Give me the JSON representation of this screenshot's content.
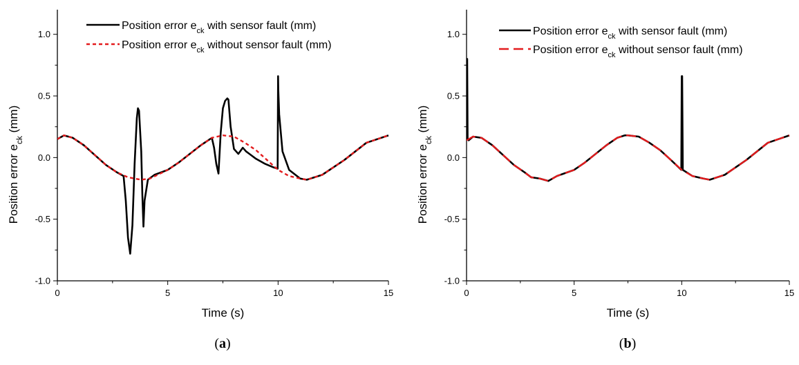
{
  "chart_data": [
    {
      "type": "line",
      "panel_label": "a",
      "xlabel": "Time (s)",
      "ylabel": {
        "main": "Position error e",
        "sub": "ck",
        "unit": " (mm)"
      },
      "xlim": [
        0,
        15
      ],
      "ylim": [
        -1.0,
        1.2
      ],
      "xticks": [
        "0",
        "5",
        "10",
        "15"
      ],
      "xtick_values": [
        0,
        5,
        10,
        15
      ],
      "yticks": [
        "-1.0",
        "-0.5",
        "0.0",
        "0.5",
        "1.0"
      ],
      "ytick_values": [
        -1.0,
        -0.5,
        0.0,
        0.5,
        1.0
      ],
      "legend_position": "top-center",
      "series": [
        {
          "name": {
            "main": "Position error e",
            "sub": "ck",
            "suffix": " with sensor fault (mm)"
          },
          "color": "#000000",
          "style": "solid",
          "x": [
            0,
            0.3,
            0.7,
            1.2,
            1.7,
            2.2,
            2.7,
            3.0,
            3.1,
            3.2,
            3.3,
            3.4,
            3.5,
            3.6,
            3.65,
            3.7,
            3.8,
            3.85,
            3.9,
            3.95,
            4.1,
            4.4,
            5.0,
            5.5,
            6.0,
            6.5,
            7.0,
            7.1,
            7.2,
            7.3,
            7.4,
            7.5,
            7.6,
            7.7,
            7.75,
            7.85,
            8.0,
            8.2,
            8.4,
            8.55,
            8.7,
            9.0,
            9.4,
            9.8,
            9.98,
            10.0,
            10.01,
            10.05,
            10.2,
            10.5,
            11.0,
            11.3,
            12.0,
            13.0,
            14.0,
            15.0
          ],
          "y": [
            0.15,
            0.18,
            0.16,
            0.1,
            0.02,
            -0.06,
            -0.12,
            -0.15,
            -0.35,
            -0.65,
            -0.78,
            -0.55,
            -0.05,
            0.32,
            0.4,
            0.38,
            0.05,
            -0.3,
            -0.56,
            -0.35,
            -0.18,
            -0.14,
            -0.1,
            -0.04,
            0.03,
            0.1,
            0.16,
            0.08,
            -0.05,
            -0.13,
            0.2,
            0.4,
            0.46,
            0.48,
            0.47,
            0.25,
            0.07,
            0.03,
            0.08,
            0.05,
            0.03,
            -0.01,
            -0.05,
            -0.08,
            -0.09,
            0.66,
            0.55,
            0.35,
            0.05,
            -0.1,
            -0.17,
            -0.18,
            -0.14,
            -0.02,
            0.12,
            0.18
          ]
        },
        {
          "name": {
            "main": "Position error e",
            "sub": "ck",
            "suffix": " without sensor fault (mm)"
          },
          "color": "#e31a1c",
          "style": "dotted",
          "x": [
            0,
            0.3,
            0.7,
            1.2,
            1.7,
            2.2,
            2.7,
            3.2,
            3.8,
            4.2,
            5.0,
            5.5,
            6.0,
            6.5,
            7.0,
            7.5,
            8.0,
            8.5,
            9.0,
            9.5,
            10.0,
            10.5,
            11.0,
            11.3,
            12.0,
            13.0,
            14.0,
            15.0
          ],
          "y": [
            0.15,
            0.18,
            0.16,
            0.1,
            0.02,
            -0.06,
            -0.12,
            -0.16,
            -0.18,
            -0.17,
            -0.1,
            -0.04,
            0.03,
            0.1,
            0.16,
            0.18,
            0.17,
            0.12,
            0.06,
            -0.02,
            -0.1,
            -0.15,
            -0.17,
            -0.18,
            -0.14,
            -0.02,
            0.12,
            0.18
          ]
        }
      ]
    },
    {
      "type": "line",
      "panel_label": "b",
      "xlabel": "Time (s)",
      "ylabel": {
        "main": "Position error e",
        "sub": "ck",
        "unit": " (mm)"
      },
      "xlim": [
        0,
        15
      ],
      "ylim": [
        -1.0,
        1.2
      ],
      "xticks": [
        "0",
        "5",
        "10",
        "15"
      ],
      "xtick_values": [
        0,
        5,
        10,
        15
      ],
      "yticks": [
        "-1.0",
        "-0.5",
        "0.0",
        "0.5",
        "1.0"
      ],
      "ytick_values": [
        -1.0,
        -0.5,
        0.0,
        0.5,
        1.0
      ],
      "legend_position": "top-right",
      "series": [
        {
          "name": {
            "main": "Position error e",
            "sub": "ck",
            "suffix": " with sensor fault (mm)"
          },
          "color": "#000000",
          "style": "solid",
          "x": [
            0,
            0.01,
            0.03,
            0.05,
            0.1,
            0.3,
            0.7,
            1.2,
            1.7,
            2.2,
            2.7,
            3.0,
            3.4,
            3.8,
            3.9,
            4.2,
            5.0,
            5.5,
            6.0,
            6.5,
            7.0,
            7.35,
            7.5,
            8.0,
            8.5,
            9.0,
            9.5,
            9.98,
            10.0,
            10.02,
            10.05,
            10.5,
            11.0,
            11.3,
            12.0,
            13.0,
            14.0,
            15.0
          ],
          "y": [
            0.14,
            0.8,
            0.8,
            0.15,
            0.14,
            0.17,
            0.16,
            0.1,
            0.02,
            -0.06,
            -0.12,
            -0.16,
            -0.17,
            -0.19,
            -0.18,
            -0.15,
            -0.1,
            -0.04,
            0.03,
            0.1,
            0.16,
            0.18,
            0.18,
            0.17,
            0.12,
            0.06,
            -0.02,
            -0.1,
            0.66,
            0.66,
            -0.1,
            -0.15,
            -0.17,
            -0.18,
            -0.14,
            -0.02,
            0.12,
            0.18
          ]
        },
        {
          "name": {
            "main": "Position error e",
            "sub": "ck",
            "suffix": " without sensor fault (mm)"
          },
          "color": "#e31a1c",
          "style": "dashed",
          "x": [
            0,
            0.1,
            0.3,
            0.7,
            1.2,
            1.7,
            2.2,
            2.7,
            3.0,
            3.4,
            3.8,
            3.9,
            4.2,
            5.0,
            5.5,
            6.0,
            6.5,
            7.0,
            7.35,
            7.5,
            8.0,
            8.5,
            9.0,
            9.5,
            10.0,
            10.5,
            11.0,
            11.3,
            12.0,
            13.0,
            14.0,
            15.0
          ],
          "y": [
            0.14,
            0.15,
            0.17,
            0.16,
            0.1,
            0.02,
            -0.06,
            -0.12,
            -0.16,
            -0.17,
            -0.19,
            -0.18,
            -0.15,
            -0.1,
            -0.04,
            0.03,
            0.1,
            0.16,
            0.18,
            0.18,
            0.17,
            0.12,
            0.06,
            -0.02,
            -0.1,
            -0.15,
            -0.17,
            -0.18,
            -0.14,
            -0.02,
            0.12,
            0.18
          ]
        }
      ]
    }
  ]
}
